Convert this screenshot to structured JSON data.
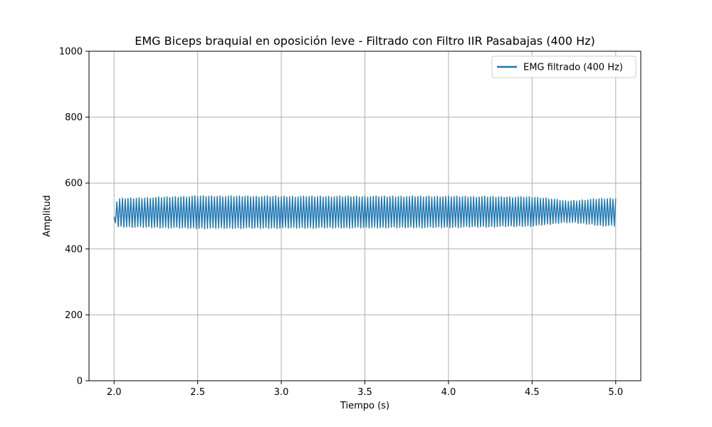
{
  "chart_data": {
    "type": "line",
    "title": "EMG Biceps braquial en oposición leve - Filtrado con Filtro IIR Pasabajas (400 Hz)",
    "xlabel": "Tiempo (s)",
    "ylabel": "Amplitud",
    "xlim": [
      1.85,
      5.15
    ],
    "ylim": [
      0,
      1000
    ],
    "xticks": [
      2.0,
      2.5,
      3.0,
      3.5,
      4.0,
      4.5,
      5.0
    ],
    "xtick_labels": [
      "2.0",
      "2.5",
      "3.0",
      "3.5",
      "4.0",
      "4.5",
      "5.0"
    ],
    "yticks": [
      0,
      200,
      400,
      600,
      800,
      1000
    ],
    "ytick_labels": [
      "0",
      "200",
      "400",
      "600",
      "800",
      "1000"
    ],
    "grid": true,
    "legend_position": "top-right",
    "series": [
      {
        "name": "EMG filtrado (400 Hz)",
        "color": "#1f77b4",
        "x_range": [
          2.0,
          5.0
        ],
        "baseline": 510,
        "envelope": [
          {
            "x": 2.0,
            "upper": 500,
            "lower": 490
          },
          {
            "x": 2.02,
            "upper": 552,
            "lower": 468
          },
          {
            "x": 2.5,
            "upper": 560,
            "lower": 463
          },
          {
            "x": 3.0,
            "upper": 559,
            "lower": 464
          },
          {
            "x": 3.5,
            "upper": 559,
            "lower": 465
          },
          {
            "x": 4.0,
            "upper": 559,
            "lower": 466
          },
          {
            "x": 4.5,
            "upper": 557,
            "lower": 470
          },
          {
            "x": 4.6,
            "upper": 553,
            "lower": 475
          },
          {
            "x": 4.7,
            "upper": 545,
            "lower": 482
          },
          {
            "x": 4.8,
            "upper": 548,
            "lower": 478
          },
          {
            "x": 4.9,
            "upper": 552,
            "lower": 472
          },
          {
            "x": 5.0,
            "upper": 553,
            "lower": 470
          }
        ],
        "oscillation_frequency_hz": 60
      }
    ]
  }
}
